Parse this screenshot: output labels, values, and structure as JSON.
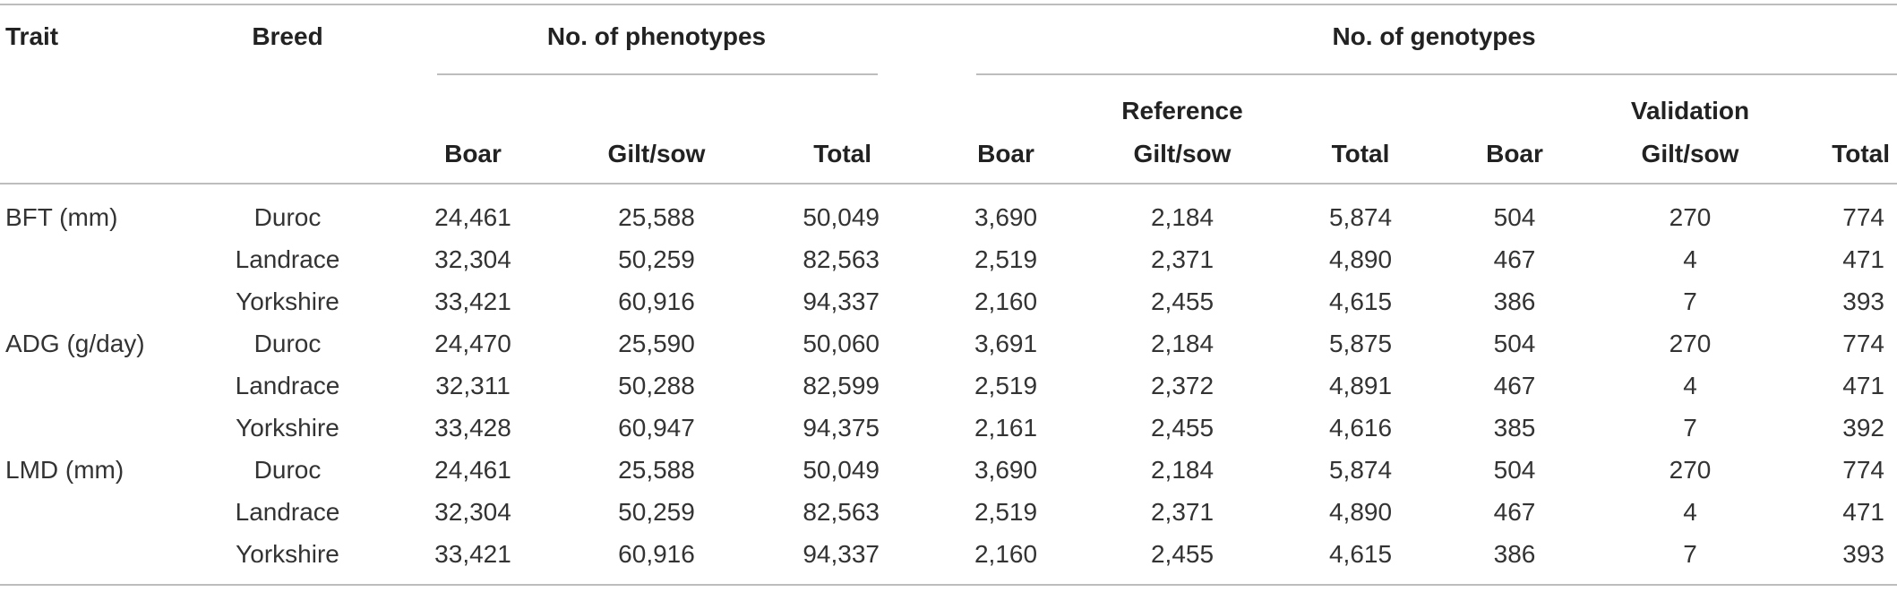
{
  "table": {
    "headers": {
      "trait": "Trait",
      "breed": "Breed",
      "phenotypes_group": "No. of phenotypes",
      "genotypes_group": "No. of genotypes",
      "reference_group": "Reference",
      "validation_group": "Validation",
      "columns": [
        "Boar",
        "Gilt/sow",
        "Total",
        "Boar",
        "Gilt/sow",
        "Total",
        "Boar",
        "Gilt/sow",
        "Total"
      ]
    },
    "rows": [
      {
        "trait": "BFT (mm)",
        "breed": "Duroc",
        "values": [
          "24,461",
          "25,588",
          "50,049",
          "3,690",
          "2,184",
          "5,874",
          "504",
          "270",
          "774"
        ]
      },
      {
        "trait": "",
        "breed": "Landrace",
        "values": [
          "32,304",
          "50,259",
          "82,563",
          "2,519",
          "2,371",
          "4,890",
          "467",
          "4",
          "471"
        ]
      },
      {
        "trait": "",
        "breed": "Yorkshire",
        "values": [
          "33,421",
          "60,916",
          "94,337",
          "2,160",
          "2,455",
          "4,615",
          "386",
          "7",
          "393"
        ]
      },
      {
        "trait": "ADG (g/day)",
        "breed": "Duroc",
        "values": [
          "24,470",
          "25,590",
          "50,060",
          "3,691",
          "2,184",
          "5,875",
          "504",
          "270",
          "774"
        ]
      },
      {
        "trait": "",
        "breed": "Landrace",
        "values": [
          "32,311",
          "50,288",
          "82,599",
          "2,519",
          "2,372",
          "4,891",
          "467",
          "4",
          "471"
        ]
      },
      {
        "trait": "",
        "breed": "Yorkshire",
        "values": [
          "33,428",
          "60,947",
          "94,375",
          "2,161",
          "2,455",
          "4,616",
          "385",
          "7",
          "392"
        ]
      },
      {
        "trait": "LMD (mm)",
        "breed": "Duroc",
        "values": [
          "24,461",
          "25,588",
          "50,049",
          "3,690",
          "2,184",
          "5,874",
          "504",
          "270",
          "774"
        ]
      },
      {
        "trait": "",
        "breed": "Landrace",
        "values": [
          "32,304",
          "50,259",
          "82,563",
          "2,519",
          "2,371",
          "4,890",
          "467",
          "4",
          "471"
        ]
      },
      {
        "trait": "",
        "breed": "Yorkshire",
        "values": [
          "33,421",
          "60,916",
          "94,337",
          "2,160",
          "2,455",
          "4,615",
          "386",
          "7",
          "393"
        ]
      }
    ]
  }
}
